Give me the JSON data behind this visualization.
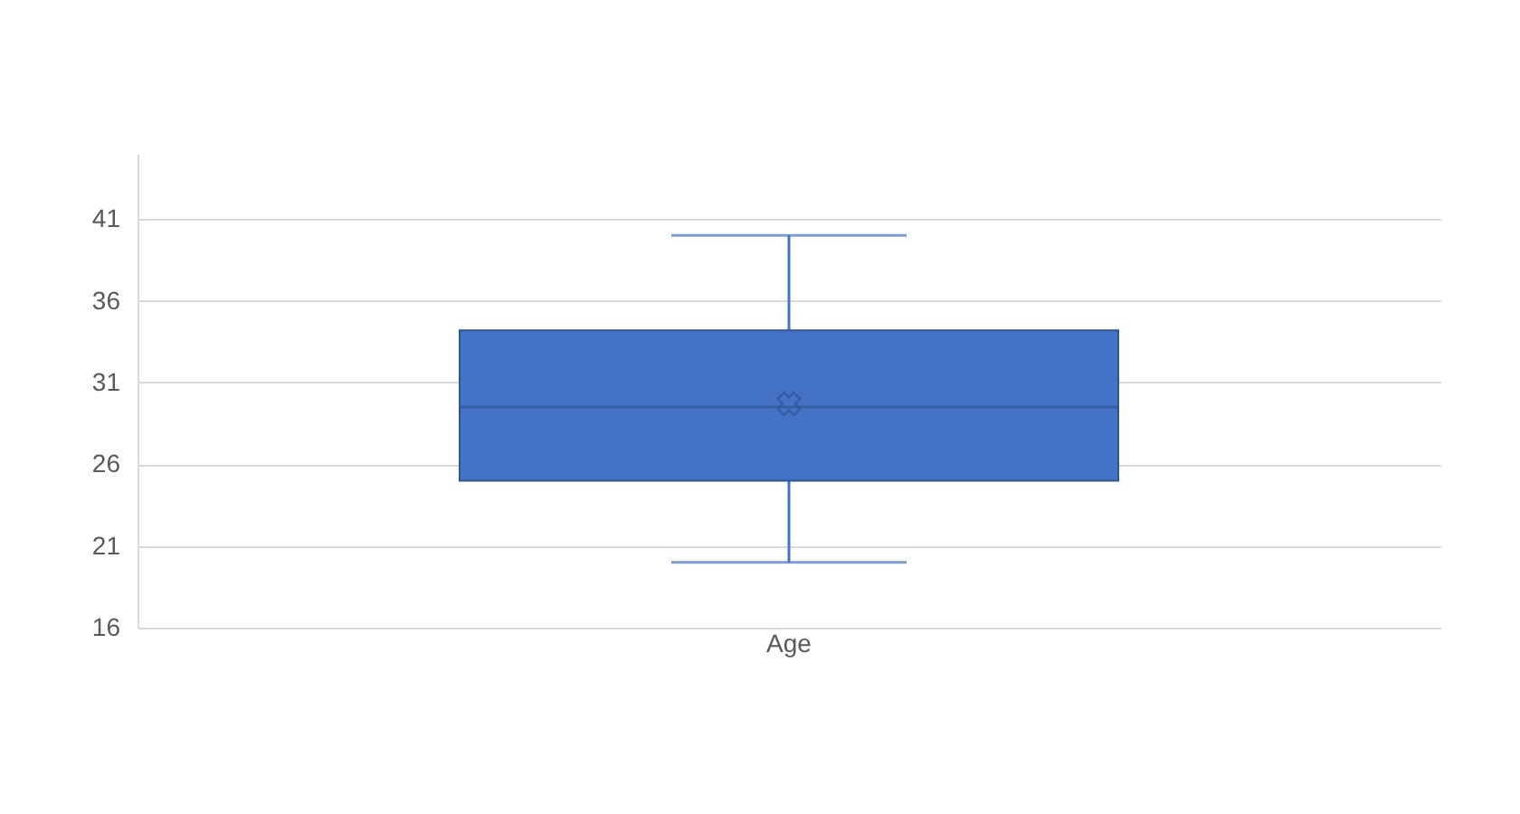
{
  "chart_data": {
    "type": "box",
    "categories": [
      "Age"
    ],
    "boxes": [
      {
        "low": 20,
        "q1": 25,
        "median": 29.5,
        "q3": 34.2,
        "high": 40,
        "mean": 29.7
      }
    ],
    "color": "#4472c4",
    "ylim": [
      16,
      45
    ],
    "yticks": [
      16,
      21,
      26,
      31,
      36,
      41
    ],
    "grid": "y"
  }
}
